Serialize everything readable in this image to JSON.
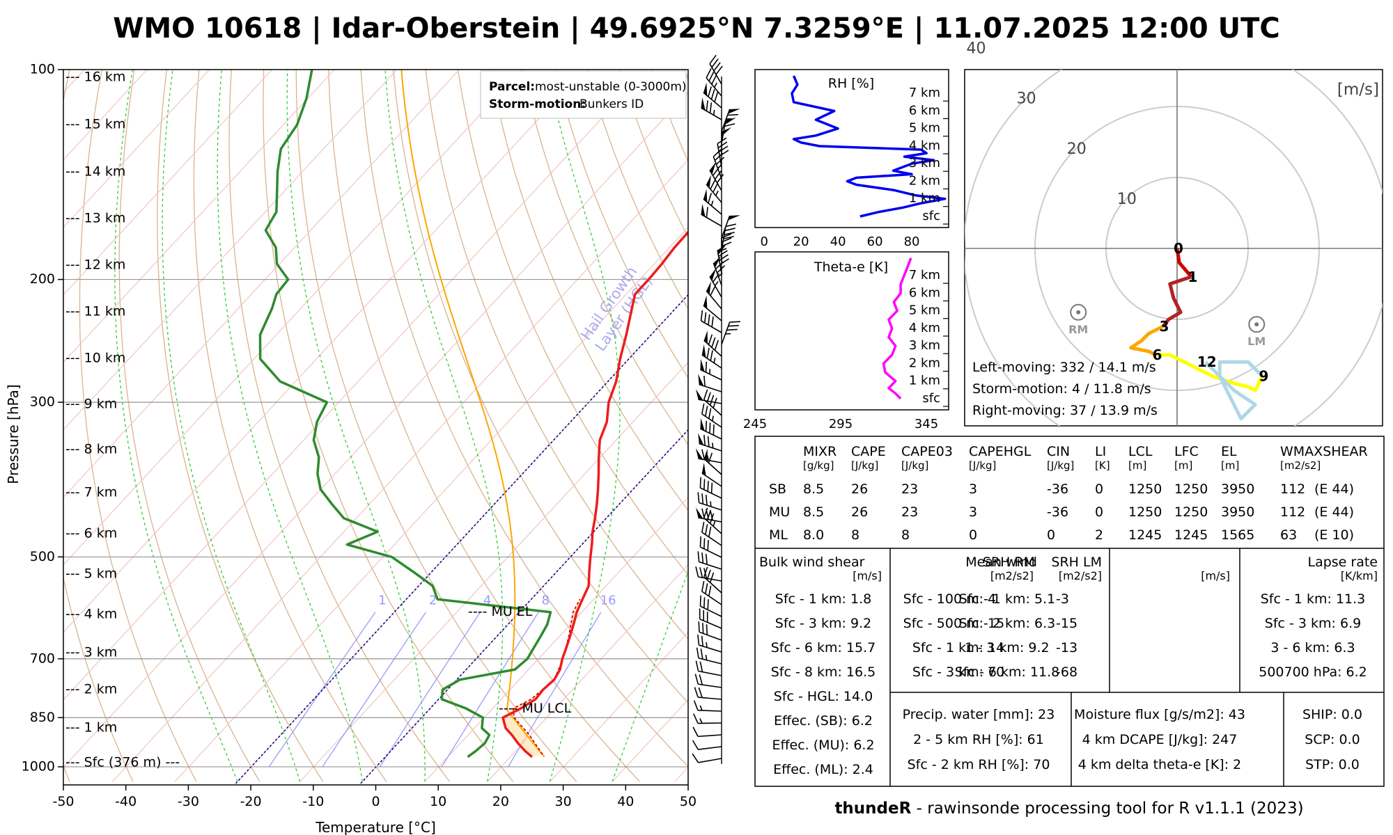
{
  "title": "WMO 10618 | Idar-Oberstein | 49.6925°N 7.3259°E | 11.07.2025 12:00 UTC",
  "footer": {
    "bold": "thundeR",
    "rest": " - rawinsonde processing tool for R v1.1.1 (2023)"
  },
  "skewt": {
    "type": "line",
    "xlabel": "Temperature [°C]",
    "ylabel": "Pressure [hPa]",
    "xlim": [
      -50,
      50
    ],
    "ylim": [
      1000,
      100
    ],
    "x_ticks": [
      "-50",
      "-40",
      "-30",
      "-20",
      "-10",
      "0",
      "10",
      "20",
      "30",
      "40",
      "50"
    ],
    "p_ticks": [
      "100",
      "200",
      "300",
      "500",
      "700",
      "850",
      "1000"
    ],
    "height_labels": [
      "--- 16 km",
      "--- 15 km",
      "--- 14 km",
      "--- 13 km",
      "--- 12 km",
      "--- 11 km",
      "--- 10 km",
      "--- 9 km",
      "--- 8 km",
      "--- 7 km",
      "--- 6 km",
      "--- 5 km",
      "--- 4 km",
      "--- 3 km",
      "--- 2 km",
      "--- 1 km",
      "--- Sfc (376 m) ---"
    ],
    "legend": {
      "parcel_key": "Parcel:",
      "parcel_val": "most-unstable (0-3000m)",
      "storm_key": "Storm-motion:",
      "storm_val": "Bunkers ID"
    },
    "hgl_label": "Hail Growth",
    "hgl_label2": "Layer (HGL)",
    "mixr_labels": [
      "1",
      "2",
      "4",
      "8",
      "16"
    ],
    "mu_el": "---- MU EL",
    "mu_lcl": "---- MU LCL",
    "temperature": {
      "p": [
        968,
        950,
        925,
        900,
        880,
        850,
        825,
        800,
        775,
        750,
        725,
        700,
        675,
        650,
        625,
        600,
        575,
        550,
        525,
        500,
        480,
        460,
        440,
        420,
        400,
        380,
        360,
        340,
        320,
        300,
        280,
        260,
        240,
        220,
        210,
        200,
        190,
        180,
        170,
        160,
        150,
        140,
        130,
        120,
        110,
        100
      ],
      "t": [
        23.5,
        21.6,
        19.2,
        17,
        15,
        13,
        14.5,
        15.5,
        15.3,
        15.6,
        15,
        13.8,
        12.8,
        11.7,
        10.5,
        9.2,
        8.2,
        7.2,
        5.2,
        3.2,
        1.6,
        -0.2,
        -1.8,
        -3.6,
        -5.6,
        -7.8,
        -10.2,
        -12.6,
        -14.2,
        -16.8,
        -18.7,
        -21.4,
        -24,
        -27,
        -28.6,
        -28.6,
        -28.8,
        -29.2,
        -29.3,
        -31,
        -32.2,
        -33.9,
        -33.8,
        -32.5,
        -30.2,
        -27.2
      ]
    },
    "dewpoint": {
      "p": [
        968,
        950,
        925,
        900,
        880,
        850,
        825,
        800,
        775,
        750,
        725,
        700,
        675,
        650,
        625,
        600,
        575,
        550,
        525,
        500,
        480,
        460,
        440,
        420,
        400,
        380,
        360,
        340,
        320,
        300,
        280,
        260,
        240,
        220,
        210,
        200,
        190,
        180,
        170,
        160,
        150,
        140,
        130,
        120,
        110,
        100
      ],
      "t": [
        13.2,
        13.6,
        13.9,
        13.4,
        11.2,
        9.8,
        5.8,
        0.5,
        -0.8,
        0.5,
        7.8,
        8.2,
        7.6,
        7,
        6.3,
        5,
        -15,
        -17.8,
        -23,
        -28.6,
        -37.6,
        -34.6,
        -42,
        -46,
        -50,
        -52.8,
        -55,
        -58.4,
        -60.6,
        -61.9,
        -72.5,
        -79,
        -82.6,
        -84.6,
        -86,
        -86.3,
        -90.4,
        -93,
        -97.2,
        -98.2,
        -101,
        -104,
        -106.8,
        -107.8,
        -110.2,
        -113.6
      ]
    },
    "parcel": {
      "p": [
        960,
        900,
        850,
        825,
        800,
        750,
        700,
        650,
        600,
        575
      ],
      "t": [
        24.8,
        19.8,
        14.8,
        13.3,
        14.8,
        15.6,
        13.9,
        11.5,
        8.6,
        7.8
      ]
    }
  },
  "rh_chart": {
    "type": "line",
    "title": "RH [%]",
    "x_ticks": [
      "0",
      "20",
      "40",
      "60",
      "80"
    ],
    "xlim": [
      0,
      100
    ],
    "y_ticks": [
      "7 km",
      "6 km",
      "5 km",
      "4 km",
      "3 km",
      "2 km",
      "1 km",
      "sfc"
    ],
    "z": [
      0,
      0.25,
      0.5,
      0.75,
      1,
      1.2,
      1.5,
      1.8,
      2,
      2.2,
      2.4,
      2.6,
      2.8,
      3,
      3.2,
      3.4,
      3.6,
      3.8,
      4,
      4.2,
      4.4,
      4.6,
      5,
      5.5,
      6,
      6.5,
      7,
      7.5,
      8
    ],
    "rh": [
      52,
      62,
      75,
      85,
      98,
      82,
      70,
      50,
      45,
      50,
      80,
      70,
      75,
      80,
      92,
      76,
      88,
      85,
      30,
      20,
      16,
      28,
      40,
      28,
      38,
      16,
      15,
      18,
      16
    ]
  },
  "thetae_chart": {
    "type": "line",
    "title": "Theta-e [K]",
    "x_ticks": [
      "245",
      "295",
      "345"
    ],
    "xlim": [
      245,
      345
    ],
    "y_ticks": [
      "7 km",
      "6 km",
      "5 km",
      "4 km",
      "3 km",
      "2 km",
      "1 km",
      "sfc"
    ],
    "z": [
      0,
      0.3,
      0.6,
      1,
      1.5,
      2,
      2.5,
      3,
      3.5,
      4,
      4.5,
      5,
      5.5,
      6,
      6.5,
      7,
      7.5,
      8
    ],
    "theta_e": [
      330,
      327,
      323,
      327,
      321,
      320,
      325,
      327,
      323,
      325,
      323,
      328,
      326,
      330,
      330,
      332,
      334,
      336
    ]
  },
  "hodograph": {
    "type": "line",
    "unit": "[m/s]",
    "ring_labels": [
      "10",
      "20",
      "30",
      "40"
    ],
    "height_labels": [
      "0",
      "1",
      "3",
      "6",
      "9",
      "12"
    ],
    "storm_labels": [
      "RM",
      "LM"
    ],
    "bunkers_rm": [
      -13.9,
      -9.0
    ],
    "bunkers_lm": [
      11.2,
      -10.7
    ],
    "profile": {
      "u": [
        0,
        0.3,
        2,
        -1,
        -0.5,
        0,
        0.5,
        -1.2,
        -2,
        -4,
        -5,
        -6.5,
        -4,
        -3,
        -1,
        1,
        3,
        5,
        8,
        10,
        11,
        12,
        10,
        6,
        6,
        7,
        8,
        9,
        11,
        8,
        6,
        4
      ],
      "v": [
        0,
        -2,
        -4,
        -5,
        -7,
        -8,
        -9,
        -10,
        -11,
        -12,
        -13,
        -14,
        -14.5,
        -15,
        -15,
        -16,
        -17,
        -18,
        -19,
        -19.5,
        -20,
        -18,
        -16,
        -16,
        -18,
        -20,
        -22,
        -24,
        -22,
        -20,
        -18,
        -16
      ],
      "idx_1km": 2,
      "idx_3km": 8,
      "idx_6km": 13,
      "idx_9km": 21,
      "idx_12km": 31
    },
    "info": [
      "Left-moving: 332 / 14.1 m/s",
      "Storm-motion: 4 / 11.8 m/s",
      "Right-moving: 37 / 13.9 m/s"
    ]
  },
  "main_table": {
    "headers": [
      [
        "MIXR",
        "[g/kg]"
      ],
      [
        "CAPE",
        "[J/kg]"
      ],
      [
        "CAPE03",
        "[J/kg]"
      ],
      [
        "CAPEHGL",
        "[J/kg]"
      ],
      [
        "CIN",
        "[J/kg]"
      ],
      [
        "LI",
        "[K]"
      ],
      [
        "LCL",
        "[m]"
      ],
      [
        "LFC",
        "[m]"
      ],
      [
        "EL",
        "[m]"
      ],
      [
        "WMAXSHEAR",
        "[m2/s2]"
      ]
    ],
    "rows": [
      [
        "SB",
        "8.5",
        "26",
        "23",
        "3",
        "-36",
        "0",
        "1250",
        "1250",
        "3950",
        "112",
        "(E 44)"
      ],
      [
        "MU",
        "8.5",
        "26",
        "23",
        "3",
        "-36",
        "0",
        "1250",
        "1250",
        "3950",
        "112",
        "(E 44)"
      ],
      [
        "ML",
        "8.0",
        "8",
        "8",
        "0",
        "0",
        "2",
        "1245",
        "1245",
        "1565",
        "63",
        "(E 10)"
      ]
    ]
  },
  "bulk_shear": {
    "title": "Bulk wind shear",
    "unit": "[m/s]",
    "rows": [
      "Sfc - 1 km: 1.8",
      "Sfc - 3 km: 9.2",
      "Sfc - 6 km: 15.7",
      "Sfc - 8 km: 16.5",
      "Sfc - HGL: 14.0",
      "Effec. (SB): 6.2",
      "Effec. (MU): 6.2",
      "Effec. (ML): 2.4"
    ]
  },
  "srh": {
    "title_rm": "SRH RM",
    "title_lm": "SRH LM",
    "unit_rm": "[m2/s2]",
    "unit_lm": "[m2/s2]",
    "labels": [
      "Sfc - 100 m:",
      "Sfc - 500 m:",
      "Sfc - 1 km:",
      "Sfc - 3 km:"
    ],
    "rm": [
      "4",
      "15",
      "14",
      "70"
    ],
    "lm": [
      "-3",
      "-15",
      "-13",
      "-68"
    ]
  },
  "mean_wind": {
    "title": "Mean wind",
    "unit": "[m/s]",
    "rows": [
      "Sfc - 1 km: 5.1",
      "Sfc - 2 km: 6.3",
      "1 - 3 km: 9.2",
      "Sfc - 6 km: 11.8"
    ]
  },
  "lapse_rate": {
    "title": "Lapse rate",
    "unit": "[K/km]",
    "rows": [
      "Sfc - 1 km: 11.3",
      "Sfc - 3 km: 6.9",
      "3 - 6 km: 6.3",
      "500700 hPa: 6.2"
    ]
  },
  "moisture": {
    "rows": [
      "Precip. water [mm]: 23",
      "2 - 5 km RH [%]: 61",
      "Sfc - 2 km RH [%]: 70"
    ]
  },
  "flux": {
    "rows": [
      "Moisture flux [g/s/m2]: 43",
      "4 km DCAPE [J/kg]: 247",
      "4 km delta theta-e [K]: 2"
    ]
  },
  "composites": {
    "rows": [
      "SHIP: 0.0",
      "SCP: 0.0",
      "STP: 0.0"
    ]
  },
  "colors": {
    "temperature": "#ee1c1c",
    "dewpoint": "#2e8b2e",
    "parcel": "#cc0000",
    "adiabat": "#ffa500",
    "dry_adiabat": "#d2a679",
    "moist_adiabat": "#32cd32",
    "mixr": "#9999ff",
    "isotherm_zero": "#00008b",
    "rh": "#0000ee",
    "thetae": "#ff00ff",
    "hodo_0_1": "#cc0000",
    "hodo_1_3": "#b22222",
    "hodo_3_6": "#ffa500",
    "hodo_6_9": "#ffff00",
    "hodo_9_12": "#add8e6"
  }
}
